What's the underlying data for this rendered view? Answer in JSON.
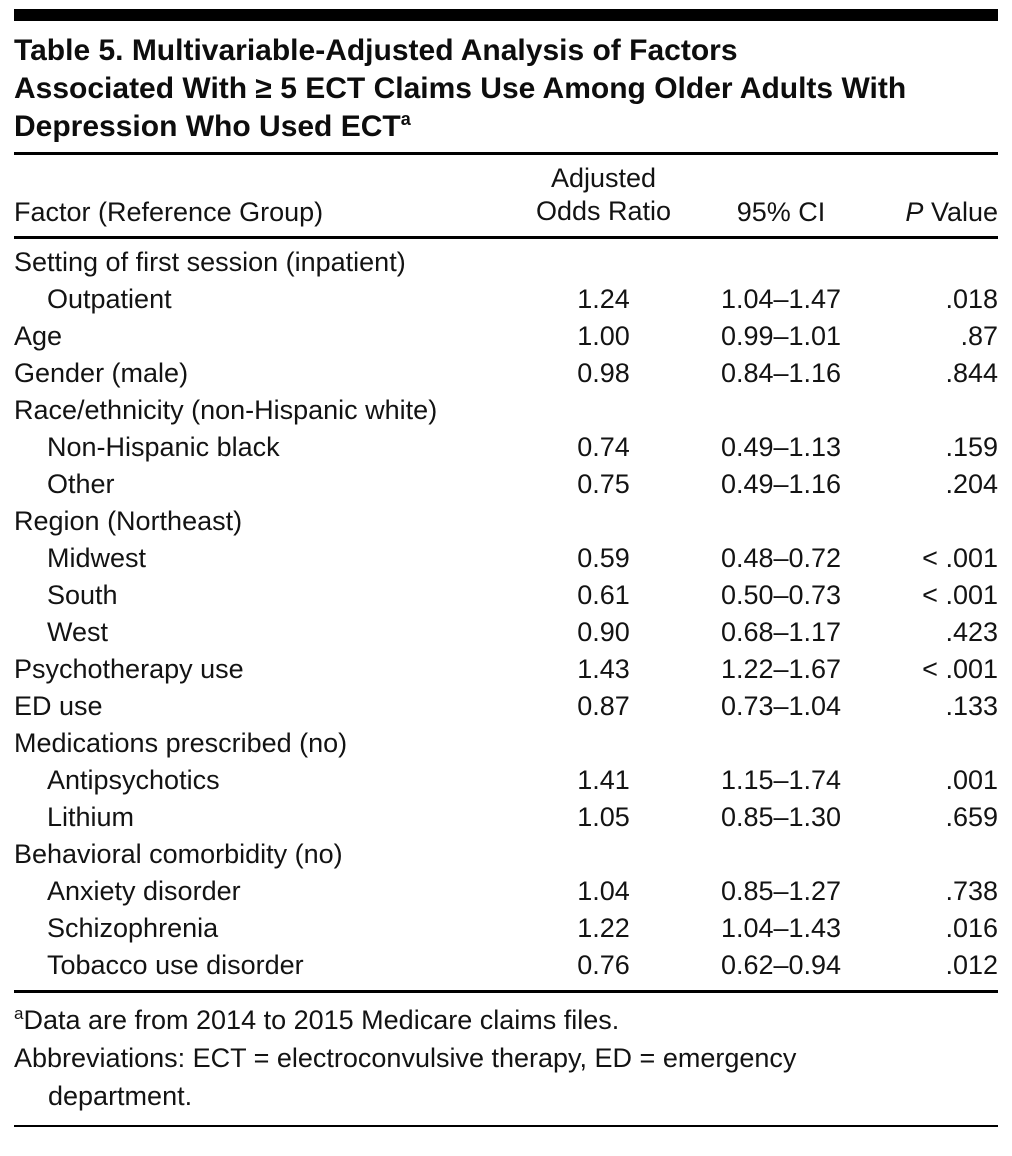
{
  "colors": {
    "rule": "#000000",
    "text": "#131313",
    "background": "#ffffff"
  },
  "title": {
    "line1": "Table 5. Multivariable-Adjusted Analysis of Factors",
    "line2": "Associated With ≥ 5 ECT Claims Use Among Older Adults With",
    "line3": "Depression Who Used ECT",
    "superscript": "a"
  },
  "table": {
    "header": {
      "factor": "Factor (Reference Group)",
      "odds_ratio_line1": "Adjusted",
      "odds_ratio_line2": "Odds Ratio",
      "ci": "95% CI",
      "p_italic": "P",
      "p_rest": " Value"
    },
    "rows": [
      {
        "label": "Setting of first session (inpatient)",
        "indent": 0,
        "or": "",
        "ci": "",
        "p": ""
      },
      {
        "label": "Outpatient",
        "indent": 1,
        "or": "1.24",
        "ci": "1.04–1.47",
        "p": ".018"
      },
      {
        "label": "Age",
        "indent": 0,
        "or": "1.00",
        "ci": "0.99–1.01",
        "p": ".87"
      },
      {
        "label": "Gender (male)",
        "indent": 0,
        "or": "0.98",
        "ci": "0.84–1.16",
        "p": ".844"
      },
      {
        "label": "Race/ethnicity (non-Hispanic white)",
        "indent": 0,
        "or": "",
        "ci": "",
        "p": ""
      },
      {
        "label": "Non-Hispanic black",
        "indent": 1,
        "or": "0.74",
        "ci": "0.49–1.13",
        "p": ".159"
      },
      {
        "label": "Other",
        "indent": 1,
        "or": "0.75",
        "ci": "0.49–1.16",
        "p": ".204"
      },
      {
        "label": "Region (Northeast)",
        "indent": 0,
        "or": "",
        "ci": "",
        "p": ""
      },
      {
        "label": "Midwest",
        "indent": 1,
        "or": "0.59",
        "ci": "0.48–0.72",
        "p": "< .001"
      },
      {
        "label": "South",
        "indent": 1,
        "or": "0.61",
        "ci": "0.50–0.73",
        "p": "< .001"
      },
      {
        "label": "West",
        "indent": 1,
        "or": "0.90",
        "ci": "0.68–1.17",
        "p": ".423"
      },
      {
        "label": "Psychotherapy use",
        "indent": 0,
        "or": "1.43",
        "ci": "1.22–1.67",
        "p": "< .001"
      },
      {
        "label": "ED use",
        "indent": 0,
        "or": "0.87",
        "ci": "0.73–1.04",
        "p": ".133"
      },
      {
        "label": "Medications prescribed (no)",
        "indent": 0,
        "or": "",
        "ci": "",
        "p": ""
      },
      {
        "label": "Antipsychotics",
        "indent": 1,
        "or": "1.41",
        "ci": "1.15–1.74",
        "p": ".001"
      },
      {
        "label": "Lithium",
        "indent": 1,
        "or": "1.05",
        "ci": "0.85–1.30",
        "p": ".659"
      },
      {
        "label": "Behavioral comorbidity (no)",
        "indent": 0,
        "or": "",
        "ci": "",
        "p": ""
      },
      {
        "label": "Anxiety disorder",
        "indent": 1,
        "or": "1.04",
        "ci": "0.85–1.27",
        "p": ".738"
      },
      {
        "label": "Schizophrenia",
        "indent": 1,
        "or": "1.22",
        "ci": "1.04–1.43",
        "p": ".016"
      },
      {
        "label": "Tobacco use disorder",
        "indent": 1,
        "or": "0.76",
        "ci": "0.62–0.94",
        "p": ".012"
      }
    ]
  },
  "footnotes": {
    "data_note": {
      "marker": "a",
      "text": "Data are from 2014 to 2015 Medicare claims files."
    },
    "abbreviations": "Abbreviations: ECT = electroconvulsive therapy, ED = emergency department."
  }
}
